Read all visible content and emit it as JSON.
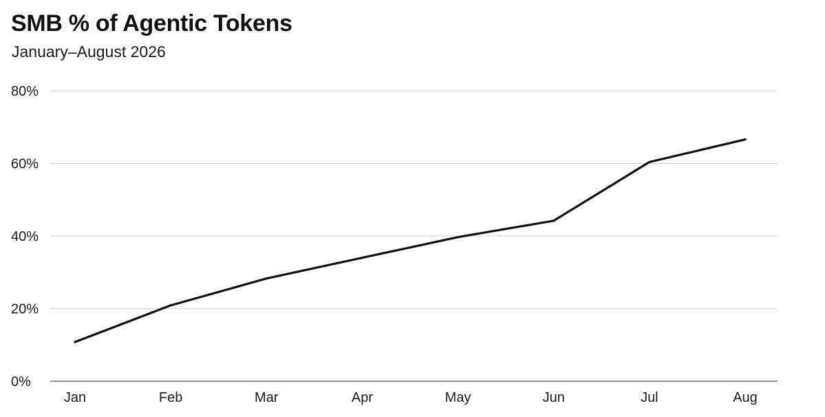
{
  "chart_data": {
    "type": "line",
    "title": "SMB % of Agentic Tokens",
    "subtitle": "January–August 2026",
    "xlabel": "",
    "ylabel": "",
    "categories": [
      "Jan",
      "Feb",
      "Mar",
      "Apr",
      "May",
      "Jun",
      "Jul",
      "Aug"
    ],
    "series": [
      {
        "values": [
          10.8,
          20.9,
          28.3,
          34.0,
          39.7,
          44.2,
          60.4,
          66.6
        ]
      }
    ],
    "ylim": [
      0,
      80
    ],
    "yticks": [
      0,
      20,
      40,
      60,
      80
    ],
    "ytick_labels": [
      "0%",
      "20%",
      "40%",
      "60%",
      "80%"
    ],
    "grid": "horizontal",
    "legend": "none",
    "colors": {
      "line": "#111111",
      "grid": "#cfcfcf",
      "text": "#1a1a1a",
      "background": "#ffffff"
    }
  }
}
